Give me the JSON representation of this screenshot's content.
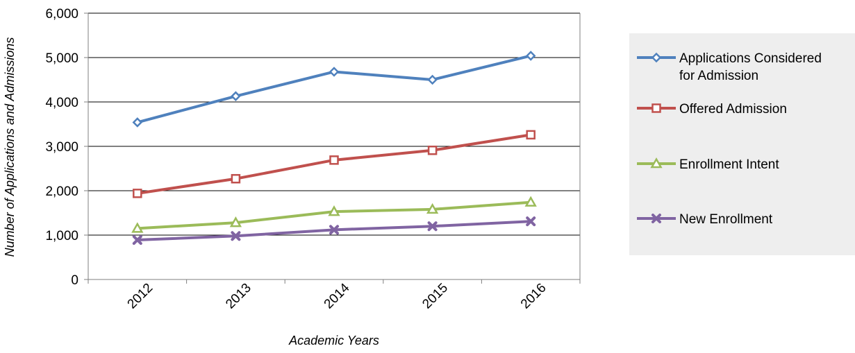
{
  "chart_data": {
    "type": "line",
    "xlabel": "Academic Years",
    "ylabel": "Number of Applications and Admissions",
    "categories": [
      "2012",
      "2013",
      "2014",
      "2015",
      "2016"
    ],
    "ylim": [
      0,
      6000
    ],
    "yticks": [
      0,
      1000,
      2000,
      3000,
      4000,
      5000,
      6000
    ],
    "ytick_labels": [
      "0",
      "1,000",
      "2,000",
      "3,000",
      "4,000",
      "5,000",
      "6,000"
    ],
    "grid": "horizontal",
    "legend_position": "right",
    "series": [
      {
        "name": "Applications Considered for Admission",
        "name_lines": [
          "Applications Considered",
          "for Admission"
        ],
        "color": "#4f81bd",
        "marker": "diamond",
        "values": [
          3540,
          4130,
          4680,
          4500,
          5040
        ]
      },
      {
        "name": "Offered Admission",
        "name_lines": [
          "Offered Admission"
        ],
        "color": "#c0504d",
        "marker": "square",
        "values": [
          1940,
          2270,
          2690,
          2910,
          3260
        ]
      },
      {
        "name": "Enrollment Intent",
        "name_lines": [
          "Enrollment Intent"
        ],
        "color": "#9bbb59",
        "marker": "triangle",
        "values": [
          1150,
          1280,
          1530,
          1580,
          1740
        ]
      },
      {
        "name": "New Enrollment",
        "name_lines": [
          "New Enrollment"
        ],
        "color": "#8064a2",
        "marker": "x",
        "values": [
          890,
          980,
          1120,
          1200,
          1310
        ]
      }
    ]
  }
}
